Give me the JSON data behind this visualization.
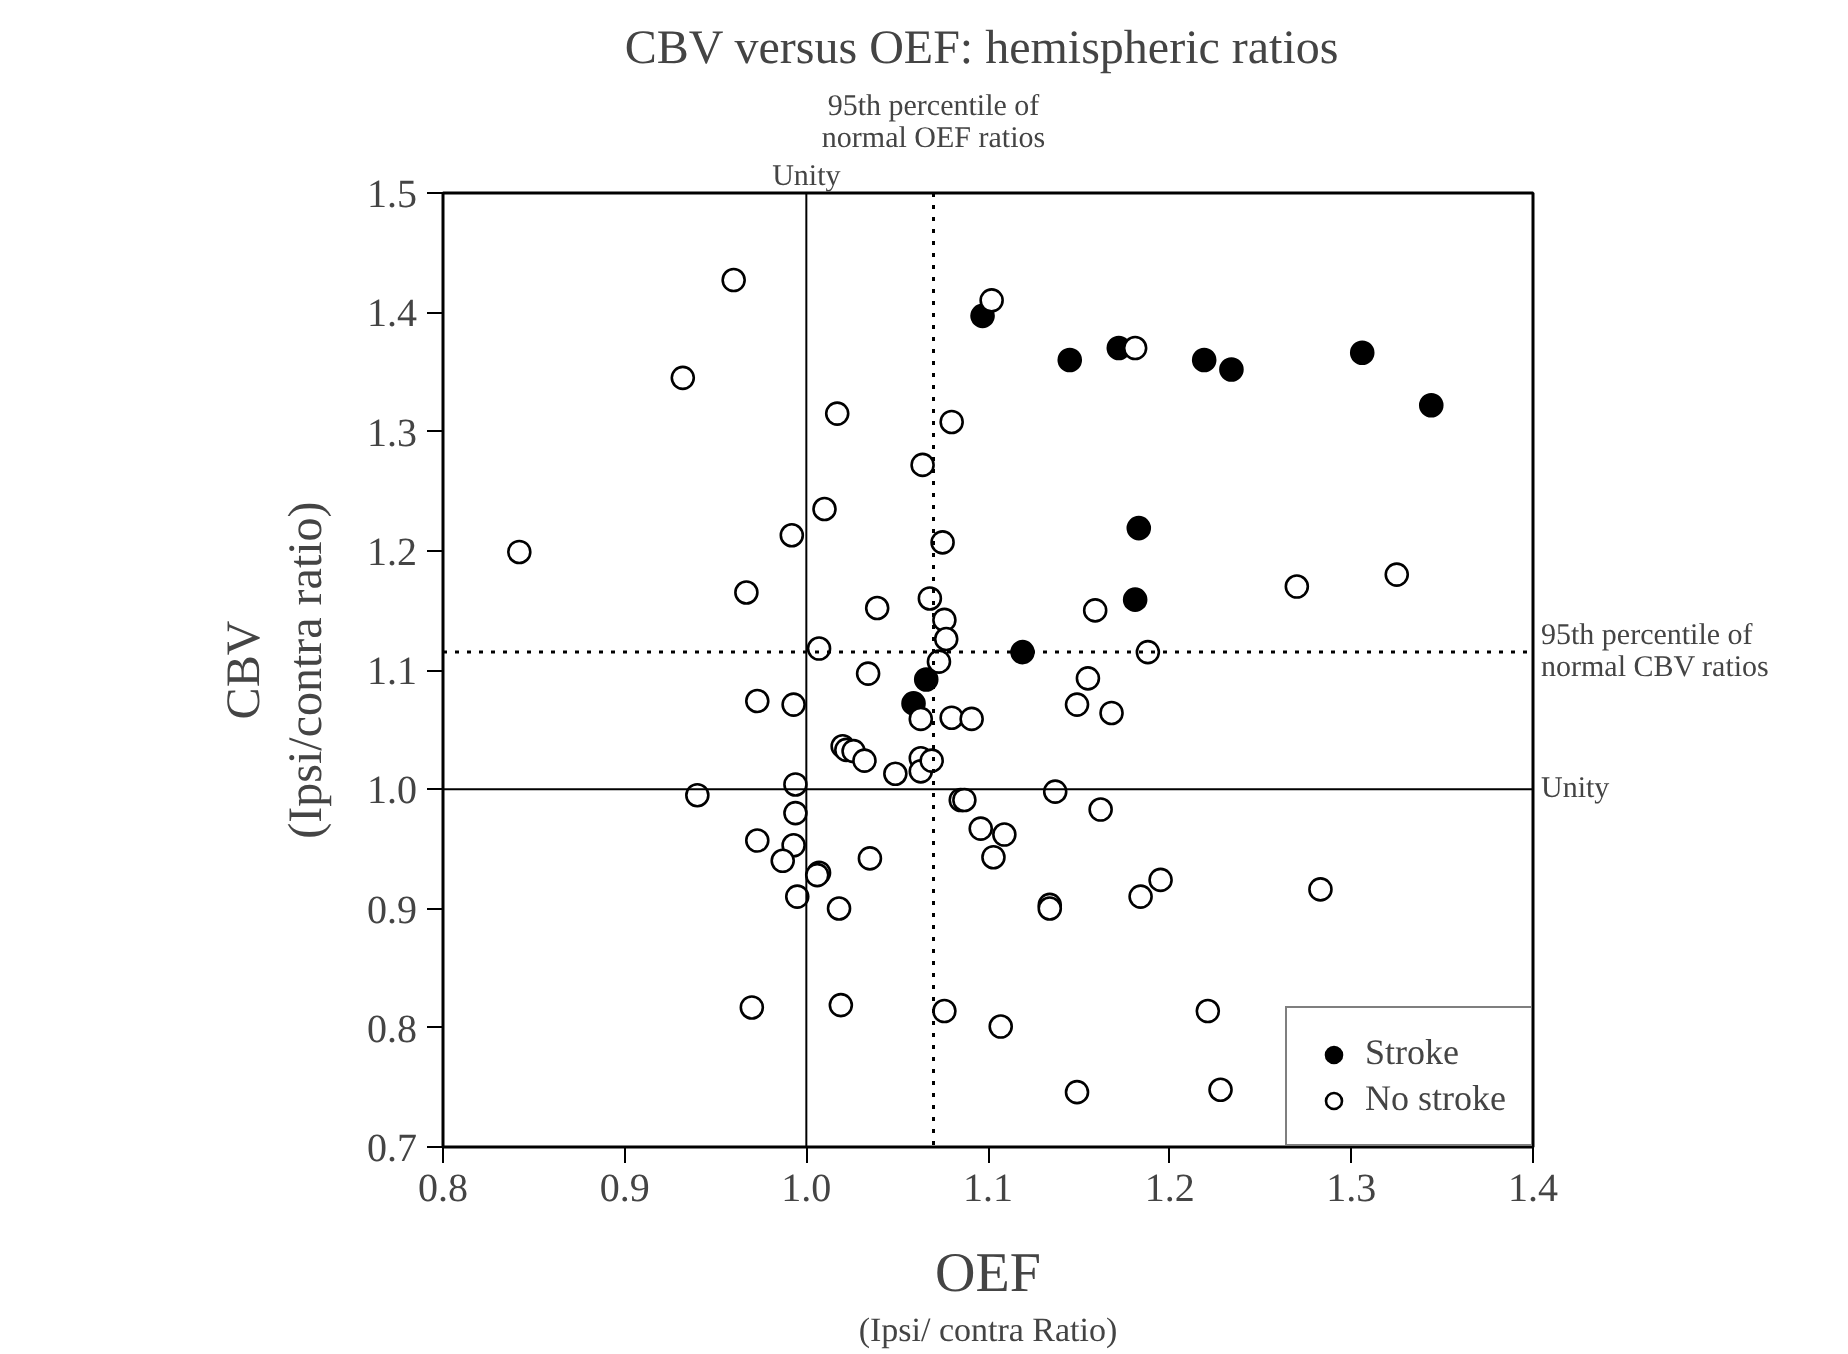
{
  "chart_data": {
    "type": "scatter",
    "title": "CBV versus OEF:  hemispheric ratios",
    "xlabel": "OEF\n(Ipsi/ contra Ratio)",
    "ylabel": "CBV\n(Ipsi/contra ratio)",
    "xlim": [
      0.8,
      1.4
    ],
    "ylim": [
      0.7,
      1.5
    ],
    "xticks": [
      {
        "value": 0.8,
        "label": "0.8"
      },
      {
        "value": 0.9,
        "label": "0.9"
      },
      {
        "value": 1.0,
        "label": "1.0"
      },
      {
        "value": 1.1,
        "label": "1.1"
      },
      {
        "value": 1.2,
        "label": "1.2"
      },
      {
        "value": 1.3,
        "label": "1.3"
      },
      {
        "value": 1.4,
        "label": "1.4"
      }
    ],
    "yticks": [
      {
        "value": 0.7,
        "label": "0.7"
      },
      {
        "value": 0.8,
        "label": "0.8"
      },
      {
        "value": 0.9,
        "label": "0.9"
      },
      {
        "value": 1.0,
        "label": "1.0"
      },
      {
        "value": 1.1,
        "label": "1.1"
      },
      {
        "value": 1.2,
        "label": "1.2"
      },
      {
        "value": 1.3,
        "label": "1.3"
      },
      {
        "value": 1.4,
        "label": "1.4"
      },
      {
        "value": 1.5,
        "label": "1.5"
      }
    ],
    "grid": false,
    "legend": "bottom right",
    "marker": "circle",
    "ref_lines": [
      {
        "axis": "x",
        "value": 1.0,
        "label": "Unity",
        "line_style": "solid",
        "color": "#000000"
      },
      {
        "axis": "x",
        "value": 1.07,
        "label": "95th percentile of\nnormal OEF ratios",
        "line_style": "dotted",
        "color": "#000000"
      },
      {
        "axis": "y",
        "value": 1.0,
        "label": "Unity",
        "line_style": "solid",
        "color": "#000000"
      },
      {
        "axis": "y",
        "value": 1.115,
        "label": "95th percentile of\nnormal CBV ratios",
        "line_style": "dotted",
        "color": "#000000"
      }
    ],
    "series": [
      {
        "name": "Stroke",
        "color": "#000000",
        "x": [
          1.097,
          1.145,
          1.172,
          1.219,
          1.234,
          1.306,
          1.344,
          1.183,
          1.181,
          1.119,
          1.066,
          1.059
        ],
        "values": [
          1.397,
          1.36,
          1.37,
          1.36,
          1.352,
          1.366,
          1.322,
          1.219,
          1.159,
          1.115,
          1.092,
          1.072
        ]
      },
      {
        "name": "No stroke",
        "color": "#ffffff",
        "x": [
          0.96,
          0.932,
          1.102,
          1.181,
          0.842,
          1.017,
          1.08,
          1.064,
          1.01,
          0.992,
          0.967,
          1.075,
          1.068,
          1.076,
          1.077,
          1.073,
          1.007,
          1.039,
          1.159,
          1.27,
          1.325,
          1.188,
          1.155,
          1.149,
          1.168,
          1.08,
          1.091,
          1.063,
          0.973,
          0.993,
          1.034,
          1.02,
          1.022,
          1.026,
          1.032,
          1.049,
          1.063,
          1.063,
          1.069,
          0.994,
          0.94,
          1.085,
          1.087,
          1.137,
          1.162,
          1.096,
          1.103,
          1.109,
          0.994,
          0.973,
          0.993,
          0.987,
          1.007,
          1.006,
          1.035,
          0.995,
          1.018,
          1.134,
          1.134,
          1.184,
          1.195,
          1.283,
          0.97,
          1.019,
          1.076,
          1.107,
          1.221,
          1.149,
          1.228
        ],
        "values": [
          1.427,
          1.345,
          1.41,
          1.37,
          1.199,
          1.315,
          1.308,
          1.272,
          1.235,
          1.213,
          1.165,
          1.207,
          1.16,
          1.142,
          1.126,
          1.107,
          1.118,
          1.152,
          1.15,
          1.17,
          1.18,
          1.115,
          1.093,
          1.071,
          1.064,
          1.06,
          1.059,
          1.059,
          1.074,
          1.071,
          1.097,
          1.036,
          1.033,
          1.032,
          1.024,
          1.013,
          1.026,
          1.015,
          1.024,
          1.004,
          0.995,
          0.991,
          0.991,
          0.998,
          0.983,
          0.967,
          0.943,
          0.962,
          0.98,
          0.957,
          0.953,
          0.94,
          0.93,
          0.928,
          0.942,
          0.91,
          0.9,
          0.903,
          0.9,
          0.91,
          0.924,
          0.916,
          0.817,
          0.819,
          0.814,
          0.801,
          0.814,
          0.746,
          0.748
        ]
      }
    ]
  }
}
